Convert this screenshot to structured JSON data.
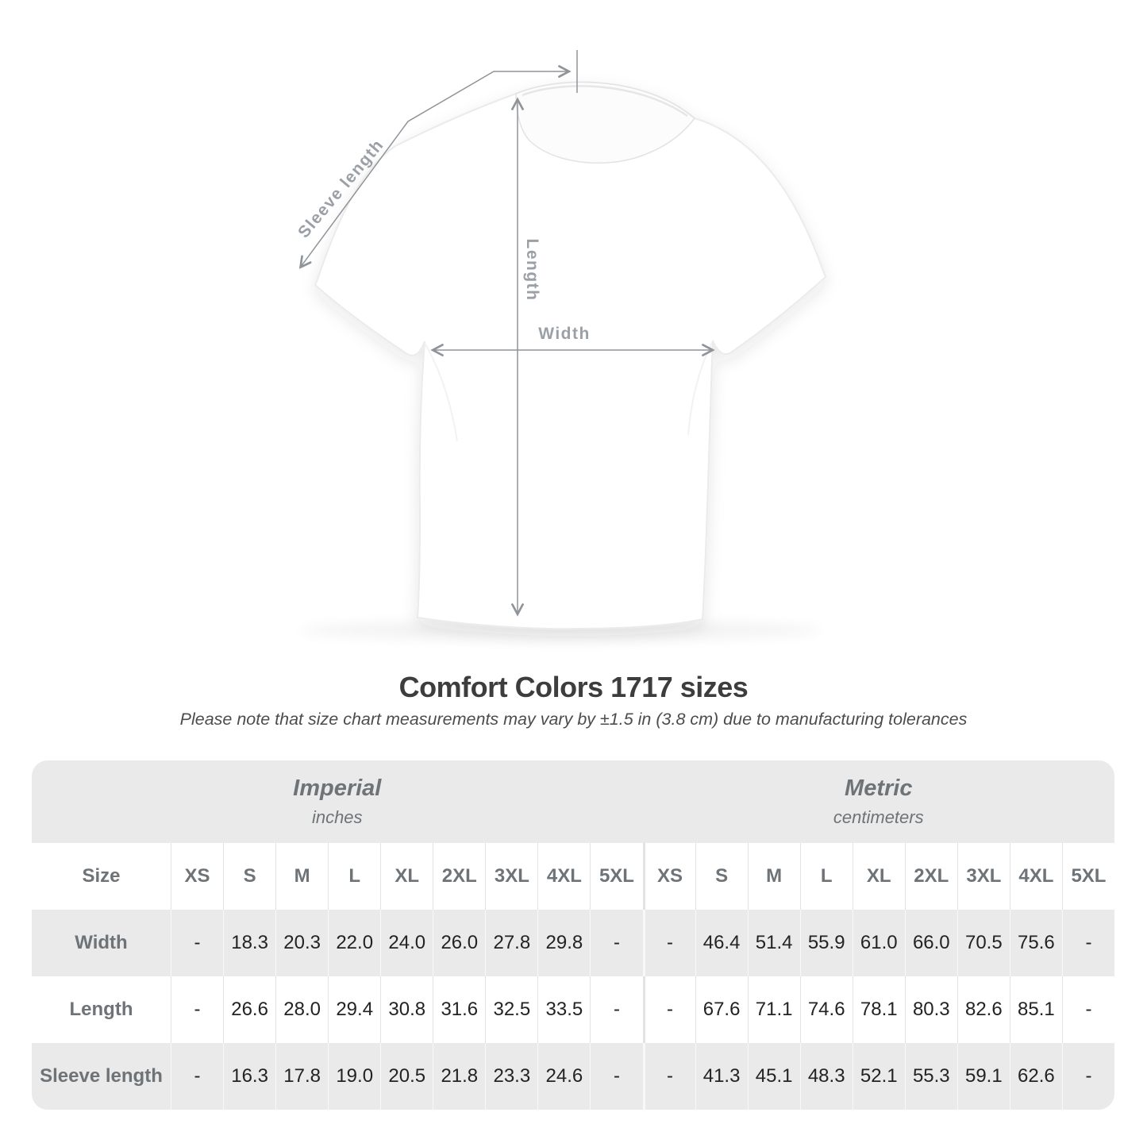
{
  "title": "Comfort Colors 1717 sizes",
  "subtitle": "Please note that size chart measurements may vary by ±1.5 in (3.8 cm) due to manufacturing tolerances",
  "diagram": {
    "sleeve_length_label": "Sleeve length",
    "length_label": "Length",
    "width_label": "Width"
  },
  "chart_data": {
    "type": "table",
    "title": "Comfort Colors 1717 sizes",
    "note": "Measurements may vary by ±1.5 in (3.8 cm) due to manufacturing tolerances",
    "size_header_label": "Size",
    "unit_groups": [
      {
        "label": "Imperial",
        "sublabel": "inches"
      },
      {
        "label": "Metric",
        "sublabel": "centimeters"
      }
    ],
    "sizes": [
      "XS",
      "S",
      "M",
      "L",
      "XL",
      "2XL",
      "3XL",
      "4XL",
      "5XL"
    ],
    "rows": [
      {
        "label": "Width",
        "imperial": [
          "-",
          "18.3",
          "20.3",
          "22.0",
          "24.0",
          "26.0",
          "27.8",
          "29.8",
          "-"
        ],
        "metric": [
          "-",
          "46.4",
          "51.4",
          "55.9",
          "61.0",
          "66.0",
          "70.5",
          "75.6",
          "-"
        ]
      },
      {
        "label": "Length",
        "imperial": [
          "-",
          "26.6",
          "28.0",
          "29.4",
          "30.8",
          "31.6",
          "32.5",
          "33.5",
          "-"
        ],
        "metric": [
          "-",
          "67.6",
          "71.1",
          "74.6",
          "78.1",
          "80.3",
          "82.6",
          "85.1",
          "-"
        ]
      },
      {
        "label": "Sleeve length",
        "imperial": [
          "-",
          "16.3",
          "17.8",
          "19.0",
          "20.5",
          "21.8",
          "23.3",
          "24.6",
          "-"
        ],
        "metric": [
          "-",
          "41.3",
          "45.1",
          "48.3",
          "52.1",
          "55.3",
          "59.1",
          "62.6",
          "-"
        ]
      }
    ]
  },
  "colors": {
    "table_band": "#eaeaea",
    "row_alt": "#eaeaea",
    "header_text": "#6e7377",
    "value_text": "#232323",
    "title_text": "#3d3d3d",
    "measure_line": "#8f9499",
    "measure_label": "#9aa0a5"
  }
}
